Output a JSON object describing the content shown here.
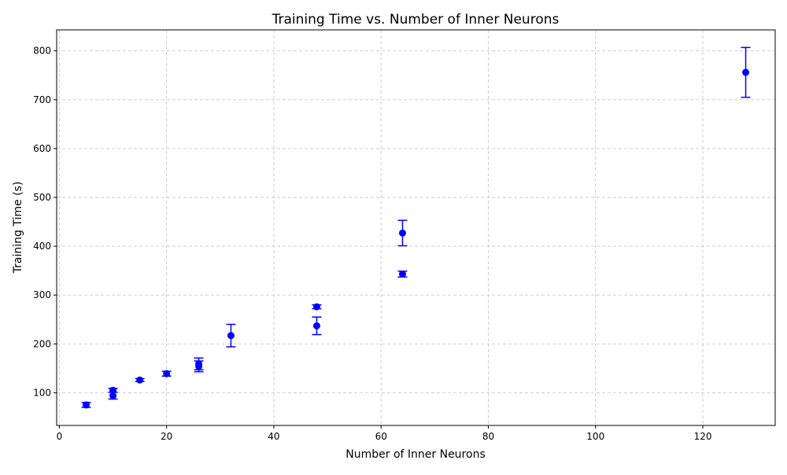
{
  "chart_data": {
    "type": "scatter",
    "title": "Training Time vs. Number of Inner Neurons",
    "xlabel": "Number of Inner Neurons",
    "ylabel": "Training Time (s)",
    "xlim": [
      -0.5,
      133.5
    ],
    "ylim": [
      33,
      843
    ],
    "x_ticks": [
      0,
      20,
      40,
      60,
      80,
      100,
      120
    ],
    "y_ticks": [
      100,
      200,
      300,
      400,
      500,
      600,
      700,
      800
    ],
    "grid": true,
    "grid_style": "dashed",
    "marker": "circle",
    "color": "#0000ff",
    "points": [
      {
        "x": 5,
        "y": 75,
        "err": 5
      },
      {
        "x": 10,
        "y": 105,
        "err": 4
      },
      {
        "x": 10,
        "y": 94,
        "err": 7
      },
      {
        "x": 15,
        "y": 126,
        "err": 3
      },
      {
        "x": 20,
        "y": 139,
        "err": 5
      },
      {
        "x": 26,
        "y": 159,
        "err": 12
      },
      {
        "x": 26,
        "y": 154,
        "err": 11
      },
      {
        "x": 32,
        "y": 217,
        "err": 23
      },
      {
        "x": 48,
        "y": 276,
        "err": 4
      },
      {
        "x": 48,
        "y": 237,
        "err": 18
      },
      {
        "x": 64,
        "y": 427,
        "err": 26
      },
      {
        "x": 64,
        "y": 343,
        "err": 6
      },
      {
        "x": 128,
        "y": 756,
        "err": 51
      }
    ]
  }
}
